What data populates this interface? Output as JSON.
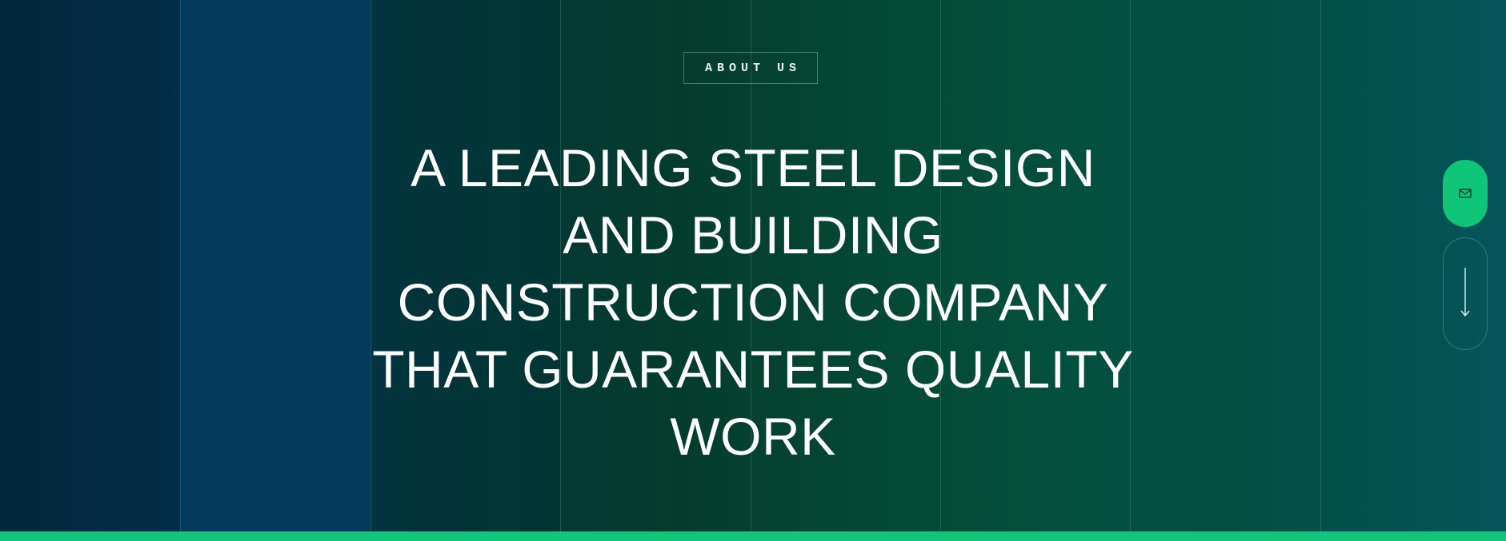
{
  "hero": {
    "badge_label": "ABOUT US",
    "headline": "A LEADING STEEL DESIGN AND BUILDING CONSTRUCTION COMPANY THAT GUARANTEES QUALITY WORK"
  },
  "side_actions": {
    "mail_icon": "mail-icon",
    "scroll_icon": "arrow-down-icon"
  },
  "colors": {
    "accent": "#13c57a",
    "text": "#ffffff",
    "background_start": "#04283d",
    "background_end": "#04545a"
  }
}
